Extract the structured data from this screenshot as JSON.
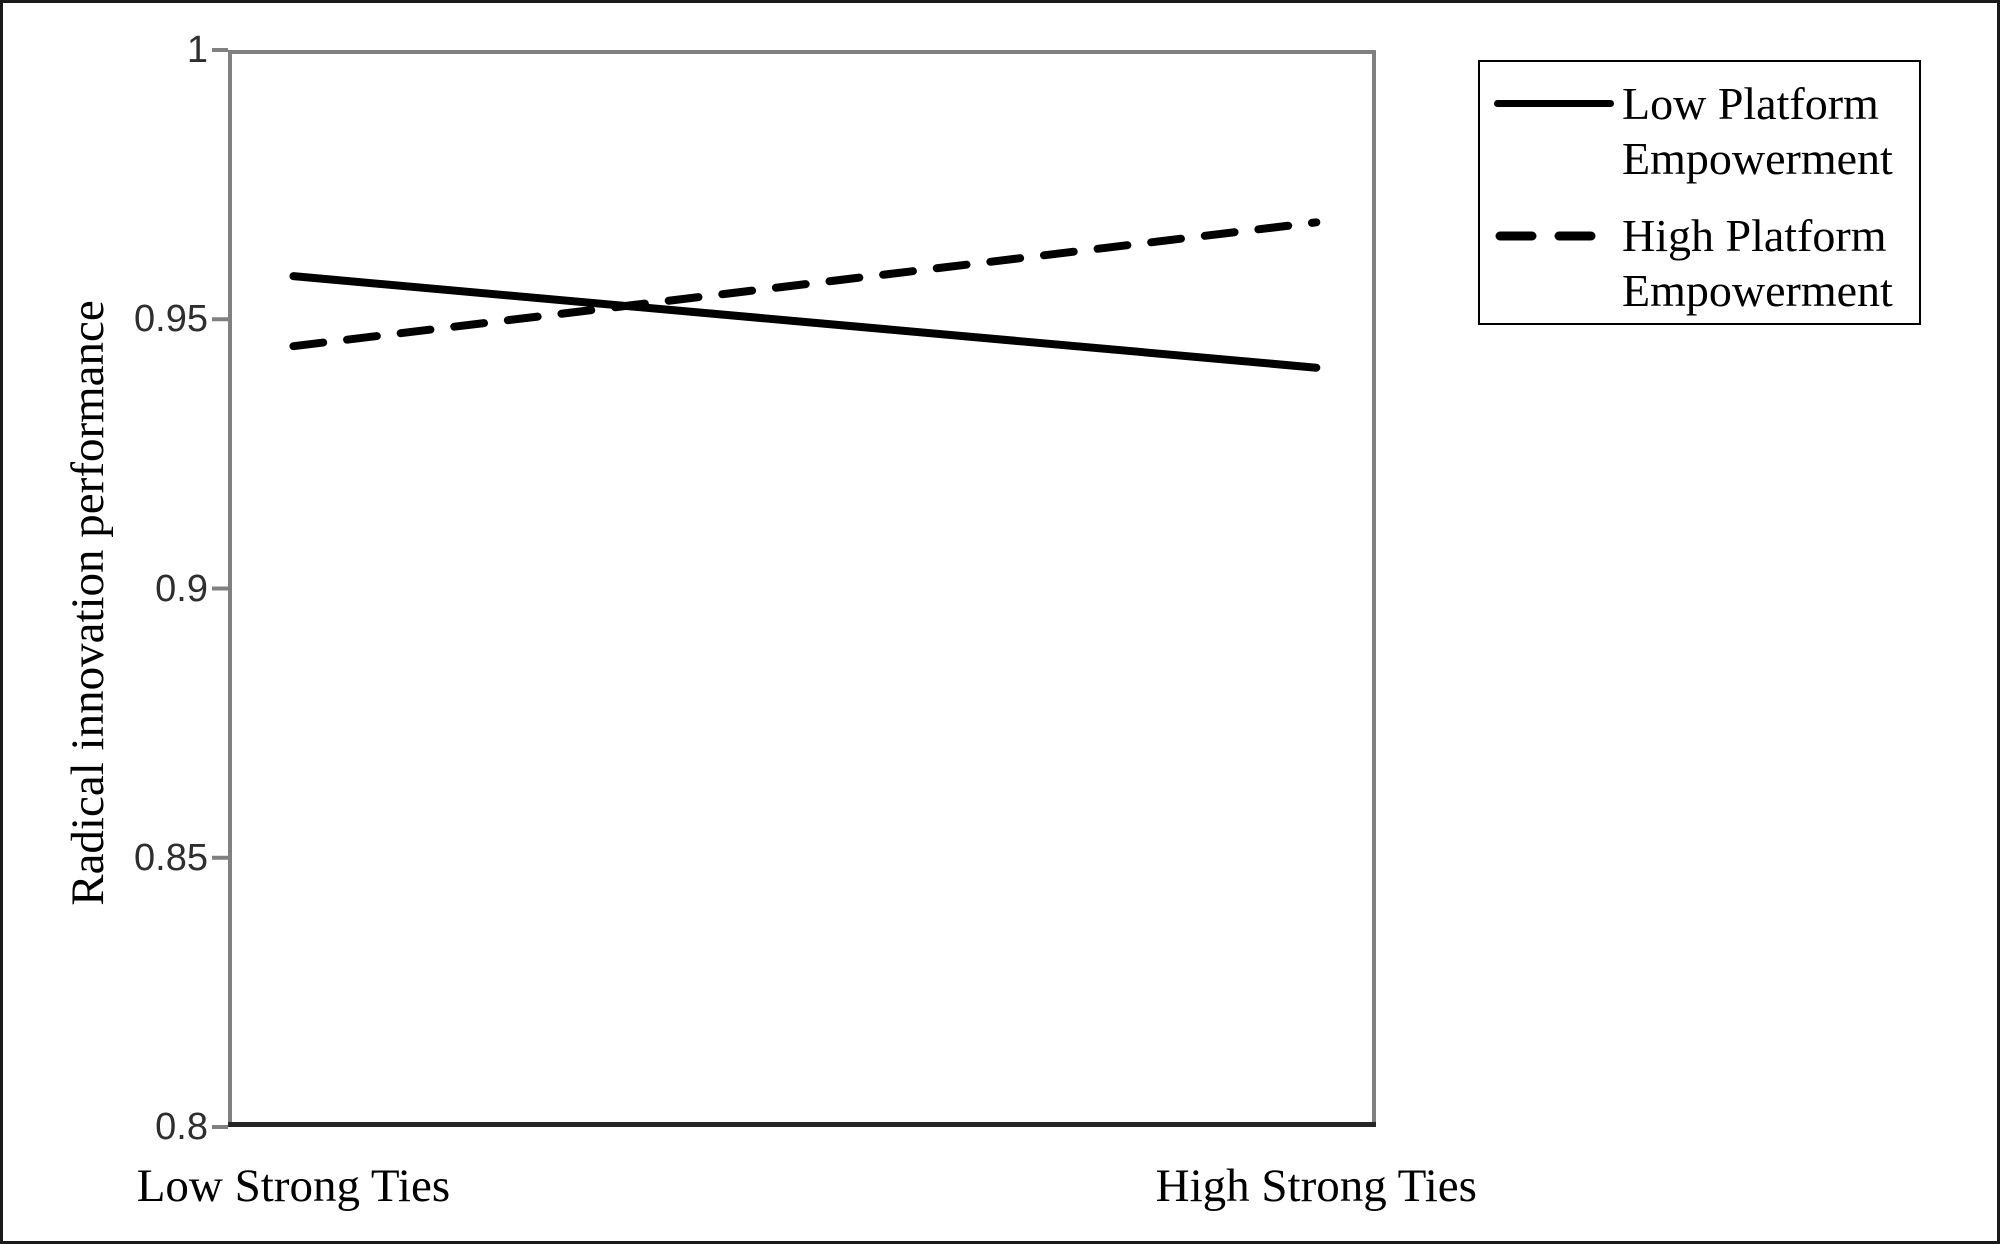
{
  "figure": {
    "background": "#ffffff",
    "outer_border_color": "#1a1a1a"
  },
  "chart_data": {
    "type": "line",
    "title": "",
    "categories": [
      "Low Strong Ties",
      "High Strong Ties"
    ],
    "series": [
      {
        "name": "Low Platform Empowerment",
        "style": "solid",
        "values": [
          0.958,
          0.941
        ]
      },
      {
        "name": "High Platform Empowerment",
        "style": "dashed",
        "values": [
          0.945,
          0.968
        ]
      }
    ],
    "xlabel": "",
    "ylabel": "Radical innovation performance",
    "ylim": [
      0.8,
      1.0
    ],
    "yticks": [
      1,
      0.95,
      0.9,
      0.85,
      0.8
    ],
    "ytick_labels": [
      "1",
      "0.95",
      "0.9",
      "0.85",
      "0.8"
    ],
    "grid": false,
    "legend_position": "outside-top-right",
    "line_color": "#000000",
    "axis_color": "#808080",
    "bottom_axis_color": "#262626"
  },
  "legend": {
    "items": [
      {
        "label": "Low Platform Empowerment",
        "style": "solid"
      },
      {
        "label": "High Platform Empowerment",
        "style": "dashed"
      }
    ]
  }
}
